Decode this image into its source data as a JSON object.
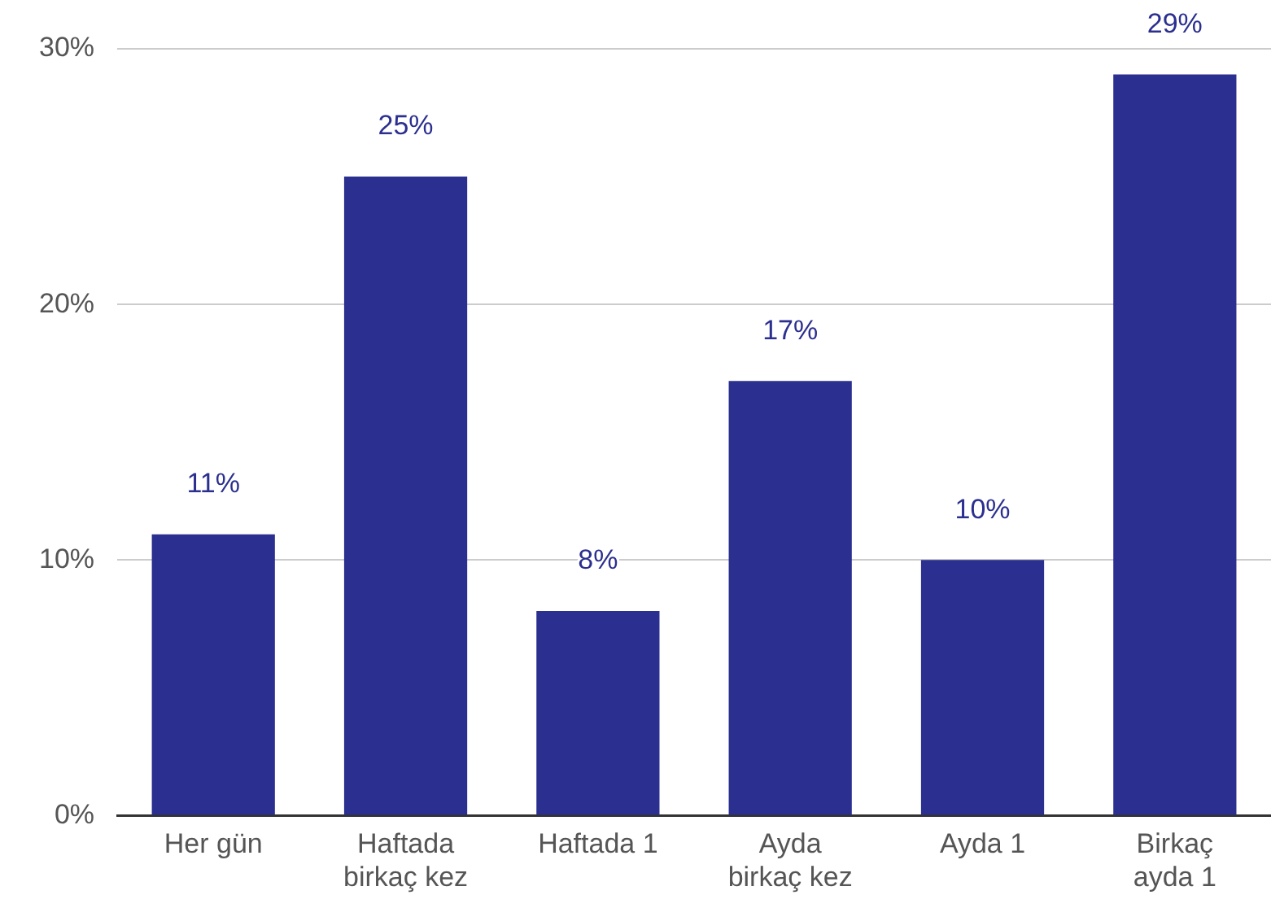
{
  "chart_data": {
    "type": "bar",
    "categories": [
      "Her gün",
      "Haftada\nbirkaç kez",
      "Haftada 1",
      "Ayda\nbirkaç kez",
      "Ayda 1",
      "Birkaç\nayda 1"
    ],
    "values": [
      11,
      25,
      8,
      17,
      10,
      29
    ],
    "color": "#2b2f8f",
    "ylim": [
      0,
      30
    ],
    "yticks": [
      {
        "value": 0,
        "label": "0%"
      },
      {
        "value": 10,
        "label": "10%"
      },
      {
        "value": 20,
        "label": "20%"
      },
      {
        "value": 30,
        "label": "30%"
      }
    ],
    "value_labels": [
      "11%",
      "25%",
      "8%",
      "17%",
      "10%",
      "29%"
    ],
    "grid": "y",
    "legend": false
  }
}
